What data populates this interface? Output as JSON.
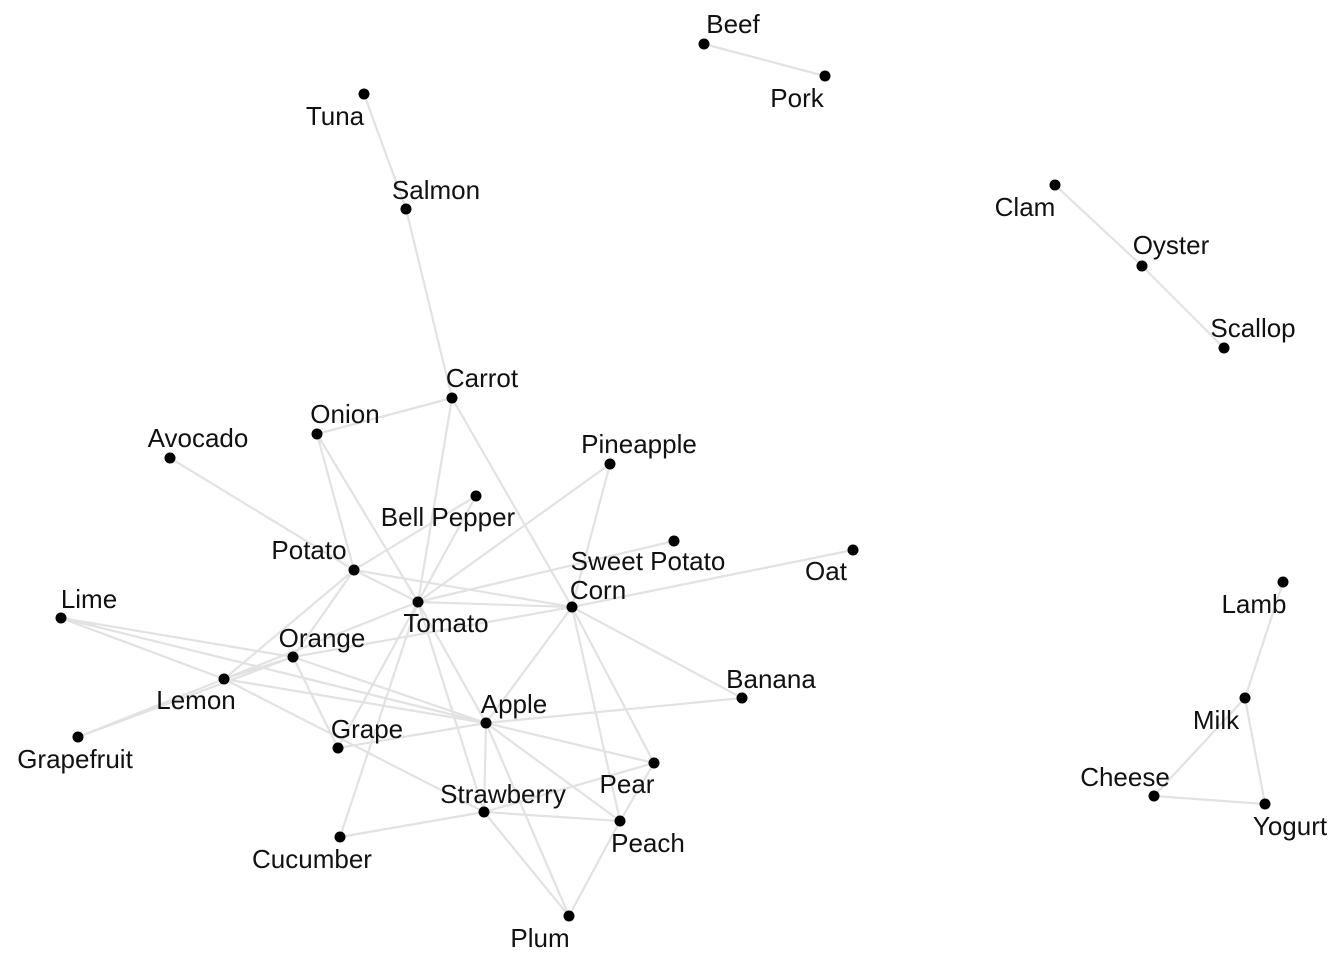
{
  "colors": {
    "node": "#000000",
    "edge": "#e2e2e2",
    "label": "#111111",
    "background": "#ffffff"
  },
  "graph": {
    "nodes": [
      {
        "id": "beef",
        "label": "Beef"
      },
      {
        "id": "pork",
        "label": "Pork"
      },
      {
        "id": "tuna",
        "label": "Tuna"
      },
      {
        "id": "salmon",
        "label": "Salmon"
      },
      {
        "id": "clam",
        "label": "Clam"
      },
      {
        "id": "oyster",
        "label": "Oyster"
      },
      {
        "id": "scallop",
        "label": "Scallop"
      },
      {
        "id": "carrot",
        "label": "Carrot"
      },
      {
        "id": "onion",
        "label": "Onion"
      },
      {
        "id": "avocado",
        "label": "Avocado"
      },
      {
        "id": "pineapple",
        "label": "Pineapple"
      },
      {
        "id": "bell_pepper",
        "label": "Bell Pepper"
      },
      {
        "id": "sweet_potato",
        "label": "Sweet Potato"
      },
      {
        "id": "oat",
        "label": "Oat"
      },
      {
        "id": "potato",
        "label": "Potato"
      },
      {
        "id": "corn",
        "label": "Corn"
      },
      {
        "id": "lime",
        "label": "Lime"
      },
      {
        "id": "tomato",
        "label": "Tomato"
      },
      {
        "id": "orange",
        "label": "Orange"
      },
      {
        "id": "lemon",
        "label": "Lemon"
      },
      {
        "id": "banana",
        "label": "Banana"
      },
      {
        "id": "apple",
        "label": "Apple"
      },
      {
        "id": "grapefruit",
        "label": "Grapefruit"
      },
      {
        "id": "grape",
        "label": "Grape"
      },
      {
        "id": "pear",
        "label": "Pear"
      },
      {
        "id": "strawberry",
        "label": "Strawberry"
      },
      {
        "id": "peach",
        "label": "Peach"
      },
      {
        "id": "cucumber",
        "label": "Cucumber"
      },
      {
        "id": "plum",
        "label": "Plum"
      },
      {
        "id": "lamb",
        "label": "Lamb"
      },
      {
        "id": "milk",
        "label": "Milk"
      },
      {
        "id": "cheese",
        "label": "Cheese"
      },
      {
        "id": "yogurt",
        "label": "Yogurt"
      }
    ],
    "edges": [
      [
        "beef",
        "pork"
      ],
      [
        "tuna",
        "salmon"
      ],
      [
        "salmon",
        "carrot"
      ],
      [
        "clam",
        "oyster"
      ],
      [
        "oyster",
        "scallop"
      ],
      [
        "lamb",
        "milk"
      ],
      [
        "milk",
        "cheese"
      ],
      [
        "milk",
        "yogurt"
      ],
      [
        "cheese",
        "yogurt"
      ],
      [
        "onion",
        "carrot"
      ],
      [
        "carrot",
        "tomato"
      ],
      [
        "carrot",
        "corn"
      ],
      [
        "onion",
        "potato"
      ],
      [
        "onion",
        "tomato"
      ],
      [
        "avocado",
        "potato"
      ],
      [
        "potato",
        "bell_pepper"
      ],
      [
        "potato",
        "tomato"
      ],
      [
        "potato",
        "corn"
      ],
      [
        "potato",
        "orange"
      ],
      [
        "potato",
        "lemon"
      ],
      [
        "bell_pepper",
        "tomato"
      ],
      [
        "pineapple",
        "tomato"
      ],
      [
        "pineapple",
        "corn"
      ],
      [
        "sweet_potato",
        "tomato"
      ],
      [
        "oat",
        "corn"
      ],
      [
        "tomato",
        "corn"
      ],
      [
        "tomato",
        "lemon"
      ],
      [
        "tomato",
        "grape"
      ],
      [
        "tomato",
        "apple"
      ],
      [
        "tomato",
        "strawberry"
      ],
      [
        "tomato",
        "cucumber"
      ],
      [
        "corn",
        "orange"
      ],
      [
        "corn",
        "banana"
      ],
      [
        "corn",
        "apple"
      ],
      [
        "corn",
        "pear"
      ],
      [
        "corn",
        "peach"
      ],
      [
        "lime",
        "lemon"
      ],
      [
        "lime",
        "orange"
      ],
      [
        "lime",
        "apple"
      ],
      [
        "lemon",
        "orange"
      ],
      [
        "lemon",
        "grapefruit"
      ],
      [
        "orange",
        "grapefruit"
      ],
      [
        "lemon",
        "apple"
      ],
      [
        "lemon",
        "strawberry"
      ],
      [
        "orange",
        "apple"
      ],
      [
        "orange",
        "grape"
      ],
      [
        "banana",
        "apple"
      ],
      [
        "apple",
        "grape"
      ],
      [
        "apple",
        "pear"
      ],
      [
        "apple",
        "peach"
      ],
      [
        "apple",
        "strawberry"
      ],
      [
        "strawberry",
        "pear"
      ],
      [
        "strawberry",
        "peach"
      ],
      [
        "strawberry",
        "plum"
      ],
      [
        "strawberry",
        "cucumber"
      ],
      [
        "apple",
        "plum"
      ],
      [
        "peach",
        "plum"
      ],
      [
        "pear",
        "peach"
      ]
    ]
  }
}
